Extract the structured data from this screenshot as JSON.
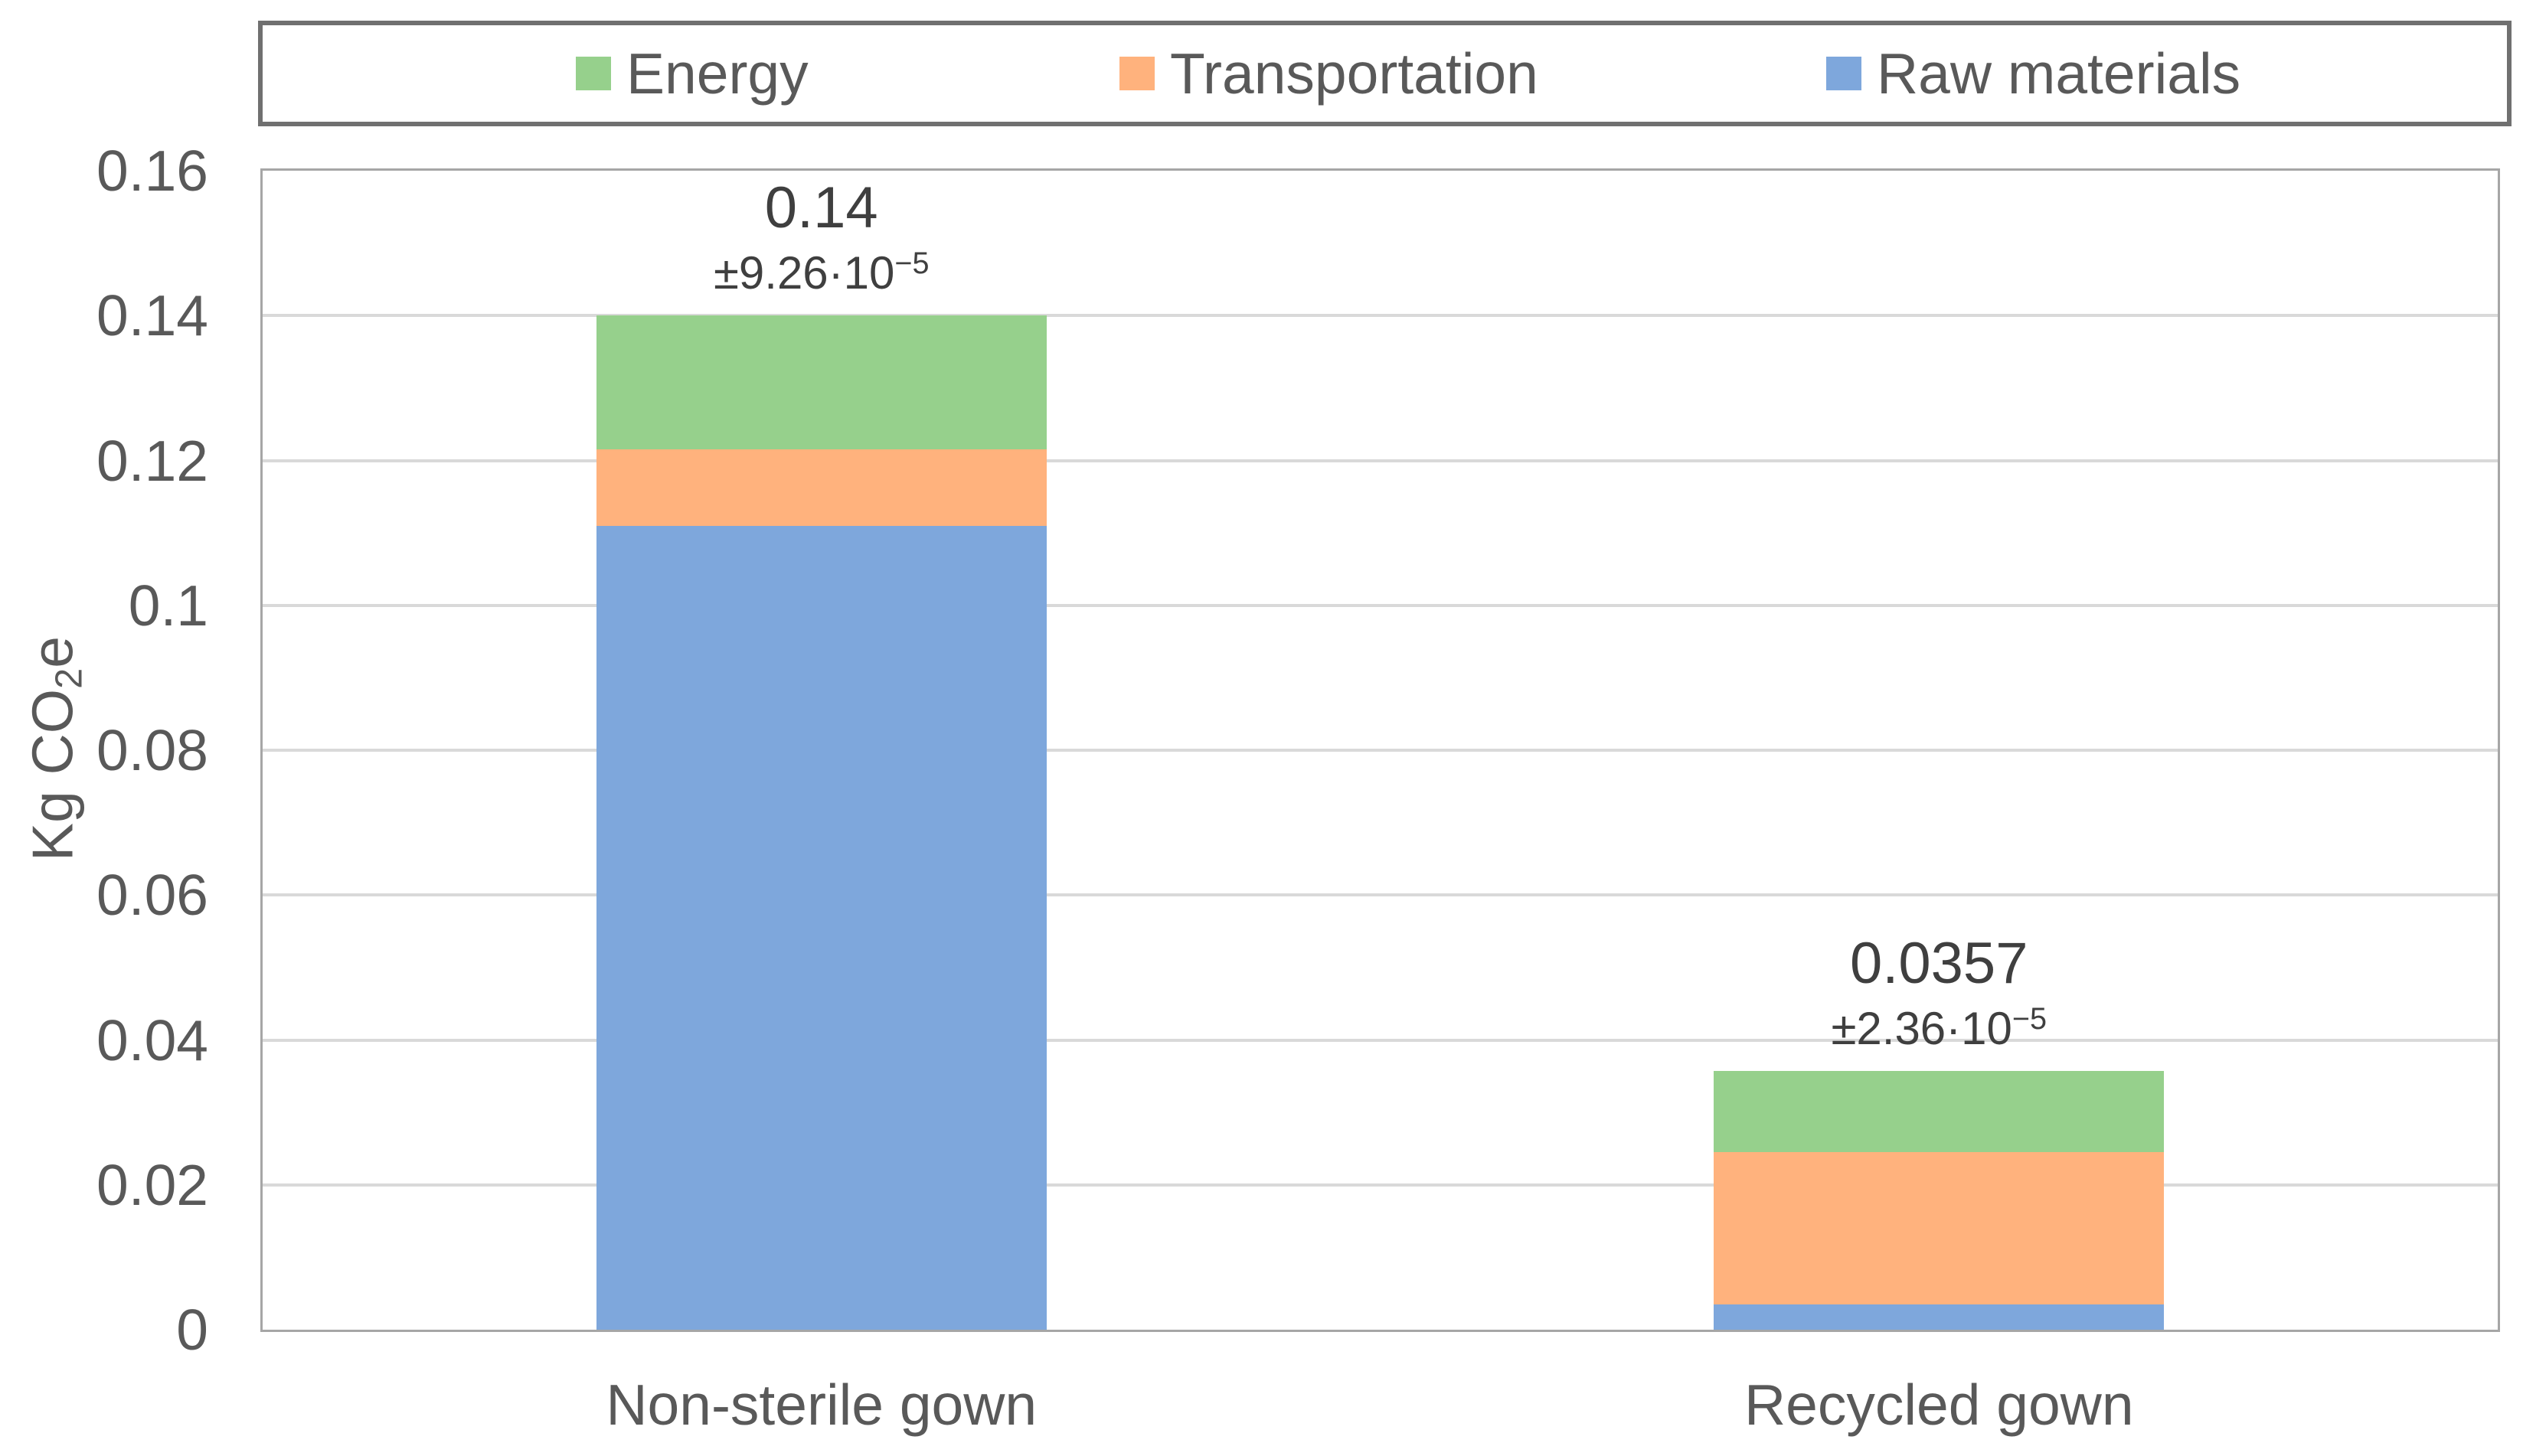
{
  "chart_data": {
    "type": "bar",
    "stacked": true,
    "title": "",
    "ylabel": {
      "pre": "Kg CO",
      "sub": "2",
      "post": "e"
    },
    "ylim": [
      0,
      0.16
    ],
    "ytick_step": 0.02,
    "grid": true,
    "legend_position": "top",
    "yticks": [
      {
        "value": 0.16,
        "label": "0.16"
      },
      {
        "value": 0.14,
        "label": "0.14"
      },
      {
        "value": 0.12,
        "label": "0.12"
      },
      {
        "value": 0.1,
        "label": "0.1"
      },
      {
        "value": 0.08,
        "label": "0.08"
      },
      {
        "value": 0.06,
        "label": "0.06"
      },
      {
        "value": 0.04,
        "label": "0.04"
      },
      {
        "value": 0.02,
        "label": "0.02"
      },
      {
        "value": 0,
        "label": "0"
      }
    ],
    "categories": [
      "Non-sterile gown",
      "Recycled gown"
    ],
    "series": [
      {
        "name": "Raw materials",
        "color": "#7EA7DC",
        "values": [
          0.111,
          0.0035
        ]
      },
      {
        "name": "Transportation",
        "color": "#FFB27D",
        "values": [
          0.0105,
          0.021
        ]
      },
      {
        "name": "Energy",
        "color": "#96D08C",
        "values": [
          0.0185,
          0.0112
        ]
      }
    ],
    "totals": [
      {
        "label": "0.14",
        "error_prefix": "±9.26·10",
        "error_exponent": "−5"
      },
      {
        "label": "0.0357",
        "error_prefix": "±2.36·10",
        "error_exponent": "−5"
      }
    ]
  },
  "legend": {
    "items": [
      {
        "label": "Energy",
        "color": "#96D08C"
      },
      {
        "label": "Transportation",
        "color": "#FFB27D"
      },
      {
        "label": "Raw materials",
        "color": "#7EA7DC"
      }
    ]
  },
  "colors": {
    "bar_blue": "#7EA7DC",
    "bar_orange": "#FFB27D",
    "bar_green": "#96D08C",
    "gridline": "#D9D9D9",
    "plot_border": "#A6A6A6",
    "legend_border": "#707070",
    "axis_text": "#595959",
    "label_text": "#3F3F3F"
  }
}
